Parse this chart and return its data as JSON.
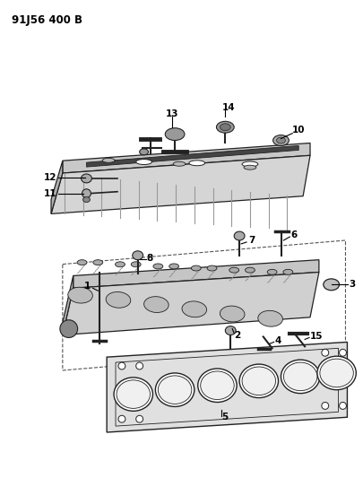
{
  "title": "91J56 400 B",
  "background_color": "#ffffff",
  "fig_width": 4.06,
  "fig_height": 5.33,
  "dpi": 100,
  "line_color": "#222222",
  "part_fill": "#d0d0d0",
  "part_fill_dark": "#a8a8a8",
  "part_fill_side": "#b8b8b8",
  "rail_color": "#555555"
}
